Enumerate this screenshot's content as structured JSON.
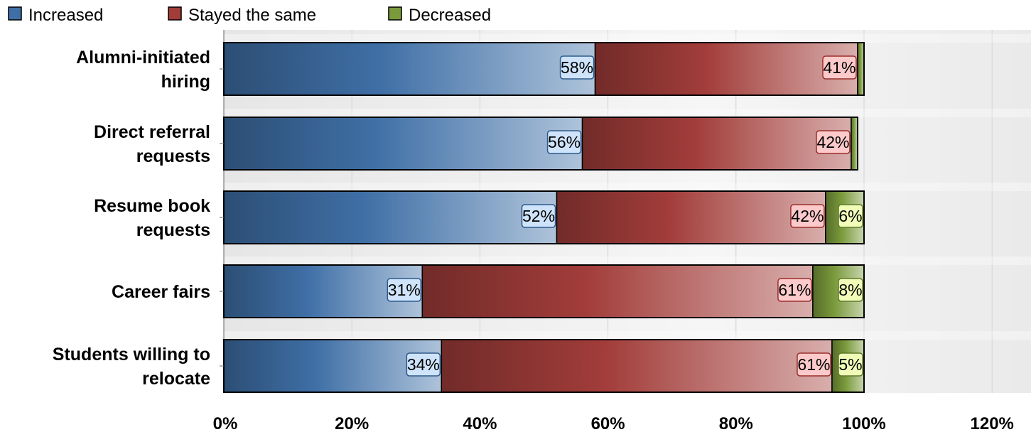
{
  "chart_data": {
    "type": "bar",
    "orientation": "horizontal",
    "stacked": true,
    "title": "",
    "xlabel": "",
    "ylabel": "",
    "categories": [
      "Alumni-initiated hiring",
      "Direct referral requests",
      "Resume book requests",
      "Career fairs",
      "Students willing to relocate"
    ],
    "series": [
      {
        "name": "Increased",
        "values": [
          58,
          56,
          52,
          31,
          34
        ],
        "labels": [
          "58%",
          "56%",
          "52%",
          "31%",
          "34%"
        ],
        "color": "#3f6fa6",
        "label_bg": "#cfe4fb",
        "label_border": "#2f5a8c"
      },
      {
        "name": "Stayed the same",
        "values": [
          41,
          42,
          42,
          61,
          61
        ],
        "labels": [
          "41%",
          "42%",
          "42%",
          "61%",
          "61%"
        ],
        "color": "#a23d3a",
        "label_bg": "#fccaca",
        "label_border": "#9a2e2b"
      },
      {
        "name": "Decreased",
        "values": [
          1,
          1,
          6,
          8,
          5
        ],
        "labels": [
          "",
          "",
          "6%",
          "8%",
          "5%"
        ],
        "color": "#7a9a3c",
        "label_bg": "#f1fcb8",
        "label_border": "#5f7a28"
      }
    ],
    "xlim": [
      0,
      120
    ],
    "xticks": [
      0,
      20,
      40,
      60,
      80,
      100,
      120
    ],
    "xtick_labels": [
      "0%",
      "20%",
      "40%",
      "60%",
      "80%",
      "100%",
      "120%"
    ],
    "grid": true,
    "legend_position": "top-left"
  }
}
